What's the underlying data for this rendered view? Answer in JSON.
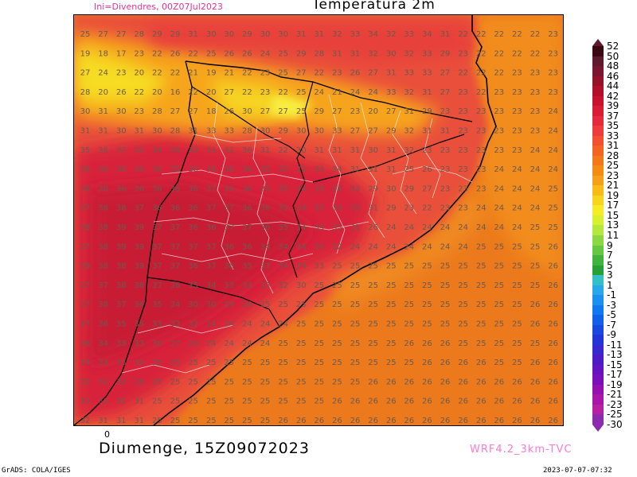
{
  "header": {
    "init_label": "Ini=Divendres, 00Z07Jul2023",
    "title": "Temperatura 2m"
  },
  "footer": {
    "zero_tick": "0",
    "valid_time": "Diumenge, 15Z09072023",
    "model_label": "WRF4.2_3km-TVC",
    "grads_label": "GrADS: COLA/IGES",
    "timestamp": "2023-07-07-07:32"
  },
  "colorbar": {
    "labels": [
      "52",
      "50",
      "48",
      "46",
      "44",
      "42",
      "39",
      "37",
      "35",
      "33",
      "31",
      "28",
      "25",
      "23",
      "21",
      "19",
      "17",
      "15",
      "13",
      "11",
      "9",
      "7",
      "5",
      "3",
      "1",
      "-1",
      "-3",
      "-5",
      "-7",
      "-9",
      "-11",
      "-13",
      "-15",
      "-17",
      "-19",
      "-21",
      "-23",
      "-25",
      "-30"
    ],
    "colors": [
      "#3a0a12",
      "#5e1a2e",
      "#7a1630",
      "#961228",
      "#b2102a",
      "#c8122e",
      "#d81c34",
      "#e42a3c",
      "#ee3c3c",
      "#f25030",
      "#f46420",
      "#f47818",
      "#f48c14",
      "#f6a018",
      "#f8bc18",
      "#f8d41c",
      "#f4ec24",
      "#d8f030",
      "#b4e83c",
      "#8cd844",
      "#64c840",
      "#40b43c",
      "#28a038",
      "#34c0c8",
      "#28a8e8",
      "#1c90f0",
      "#1078f0",
      "#1060e8",
      "#1848e0",
      "#2434d8",
      "#3828d0",
      "#4c1cc8",
      "#6414c0",
      "#7c10b8",
      "#9410b0",
      "#a818a8",
      "#b820a4",
      "#8a2bb0"
    ]
  },
  "grid_values": [
    [
      "25",
      "27",
      "27",
      "28",
      "29",
      "29",
      "31",
      "30",
      "30",
      "29",
      "30",
      "30",
      "31",
      "31",
      "32",
      "33",
      "34",
      "32",
      "33",
      "34",
      "31",
      "22",
      "22",
      "22",
      "22",
      "22",
      "23"
    ],
    [
      "19",
      "18",
      "17",
      "23",
      "22",
      "26",
      "22",
      "25",
      "26",
      "26",
      "24",
      "25",
      "29",
      "28",
      "31",
      "31",
      "32",
      "30",
      "32",
      "33",
      "29",
      "23",
      "22",
      "22",
      "22",
      "22",
      "23"
    ],
    [
      "27",
      "24",
      "23",
      "20",
      "22",
      "22",
      "21",
      "19",
      "21",
      "22",
      "23",
      "25",
      "27",
      "22",
      "23",
      "26",
      "27",
      "31",
      "33",
      "33",
      "27",
      "22",
      "22",
      "22",
      "23",
      "23",
      "23"
    ],
    [
      "28",
      "20",
      "26",
      "22",
      "20",
      "16",
      "22",
      "20",
      "27",
      "22",
      "23",
      "22",
      "25",
      "24",
      "21",
      "24",
      "24",
      "33",
      "32",
      "31",
      "27",
      "23",
      "22",
      "23",
      "23",
      "23",
      "23"
    ],
    [
      "30",
      "31",
      "30",
      "23",
      "28",
      "27",
      "27",
      "18",
      "26",
      "30",
      "27",
      "27",
      "25",
      "29",
      "27",
      "23",
      "20",
      "27",
      "31",
      "29",
      "23",
      "23",
      "23",
      "23",
      "23",
      "23",
      "24"
    ],
    [
      "31",
      "31",
      "30",
      "31",
      "30",
      "28",
      "31",
      "33",
      "33",
      "28",
      "30",
      "29",
      "30",
      "30",
      "33",
      "27",
      "27",
      "29",
      "32",
      "31",
      "31",
      "23",
      "23",
      "23",
      "23",
      "23",
      "24"
    ],
    [
      "35",
      "36",
      "37",
      "35",
      "34",
      "34",
      "33",
      "31",
      "31",
      "36",
      "31",
      "22",
      "30",
      "31",
      "31",
      "31",
      "30",
      "31",
      "32",
      "23",
      "23",
      "23",
      "23",
      "23",
      "23",
      "24",
      "24"
    ],
    [
      "36",
      "36",
      "36",
      "36",
      "36",
      "35",
      "36",
      "36",
      "36",
      "36",
      "35",
      "33",
      "32",
      "33",
      "34",
      "31",
      "31",
      "31",
      "25",
      "26",
      "23",
      "23",
      "23",
      "24",
      "24",
      "24",
      "24"
    ],
    [
      "38",
      "38",
      "36",
      "36",
      "36",
      "36",
      "36",
      "37",
      "36",
      "36",
      "35",
      "35",
      "34",
      "35",
      "34",
      "33",
      "29",
      "30",
      "29",
      "27",
      "23",
      "23",
      "23",
      "24",
      "24",
      "24",
      "25"
    ],
    [
      "37",
      "38",
      "38",
      "37",
      "36",
      "36",
      "36",
      "37",
      "37",
      "36",
      "36",
      "35",
      "34",
      "33",
      "33",
      "32",
      "31",
      "29",
      "23",
      "22",
      "23",
      "23",
      "24",
      "24",
      "24",
      "24",
      "25"
    ],
    [
      "38",
      "38",
      "39",
      "39",
      "37",
      "37",
      "36",
      "36",
      "37",
      "37",
      "36",
      "35",
      "34",
      "33",
      "33",
      "31",
      "26",
      "24",
      "24",
      "24",
      "24",
      "24",
      "24",
      "24",
      "24",
      "25",
      "25"
    ],
    [
      "37",
      "38",
      "39",
      "39",
      "37",
      "37",
      "37",
      "37",
      "36",
      "36",
      "34",
      "34",
      "34",
      "33",
      "32",
      "24",
      "24",
      "24",
      "24",
      "24",
      "24",
      "24",
      "25",
      "25",
      "25",
      "25",
      "26"
    ],
    [
      "39",
      "38",
      "38",
      "39",
      "37",
      "37",
      "36",
      "37",
      "36",
      "35",
      "33",
      "34",
      "34",
      "33",
      "25",
      "25",
      "25",
      "25",
      "25",
      "25",
      "25",
      "25",
      "25",
      "25",
      "25",
      "25",
      "26"
    ],
    [
      "37",
      "37",
      "38",
      "38",
      "37",
      "36",
      "35",
      "34",
      "33",
      "33",
      "33",
      "32",
      "30",
      "25",
      "25",
      "25",
      "25",
      "25",
      "25",
      "25",
      "25",
      "25",
      "25",
      "25",
      "25",
      "25",
      "26"
    ],
    [
      "37",
      "38",
      "37",
      "36",
      "35",
      "34",
      "30",
      "30",
      "29",
      "24",
      "25",
      "25",
      "25",
      "25",
      "25",
      "25",
      "25",
      "25",
      "25",
      "25",
      "25",
      "25",
      "25",
      "25",
      "25",
      "26",
      "26"
    ],
    [
      "37",
      "36",
      "35",
      "35",
      "33",
      "32",
      "32",
      "24",
      "24",
      "24",
      "24",
      "24",
      "25",
      "25",
      "25",
      "25",
      "25",
      "25",
      "25",
      "25",
      "25",
      "25",
      "25",
      "25",
      "25",
      "26",
      "26"
    ],
    [
      "36",
      "34",
      "33",
      "33",
      "30",
      "27",
      "24",
      "24",
      "24",
      "24",
      "24",
      "25",
      "25",
      "25",
      "25",
      "25",
      "25",
      "25",
      "26",
      "26",
      "26",
      "25",
      "25",
      "25",
      "25",
      "25",
      "26"
    ],
    [
      "34",
      "33",
      "33",
      "30",
      "25",
      "25",
      "25",
      "25",
      "25",
      "25",
      "25",
      "25",
      "25",
      "25",
      "25",
      "25",
      "25",
      "25",
      "25",
      "26",
      "26",
      "26",
      "26",
      "25",
      "25",
      "26",
      "26"
    ],
    [
      "32",
      "32",
      "32",
      "28",
      "25",
      "25",
      "25",
      "25",
      "25",
      "25",
      "25",
      "25",
      "25",
      "25",
      "25",
      "25",
      "26",
      "26",
      "26",
      "26",
      "26",
      "26",
      "26",
      "26",
      "26",
      "26",
      "26"
    ],
    [
      "32",
      "31",
      "31",
      "31",
      "25",
      "25",
      "25",
      "25",
      "25",
      "25",
      "25",
      "25",
      "25",
      "25",
      "26",
      "26",
      "26",
      "26",
      "26",
      "26",
      "26",
      "26",
      "26",
      "26",
      "26",
      "26",
      "26"
    ],
    [
      "32",
      "31",
      "31",
      "31",
      "25",
      "25",
      "25",
      "25",
      "25",
      "25",
      "25",
      "26",
      "26",
      "26",
      "26",
      "26",
      "26",
      "26",
      "26",
      "26",
      "26",
      "26",
      "26",
      "26",
      "26",
      "26",
      "26"
    ]
  ]
}
